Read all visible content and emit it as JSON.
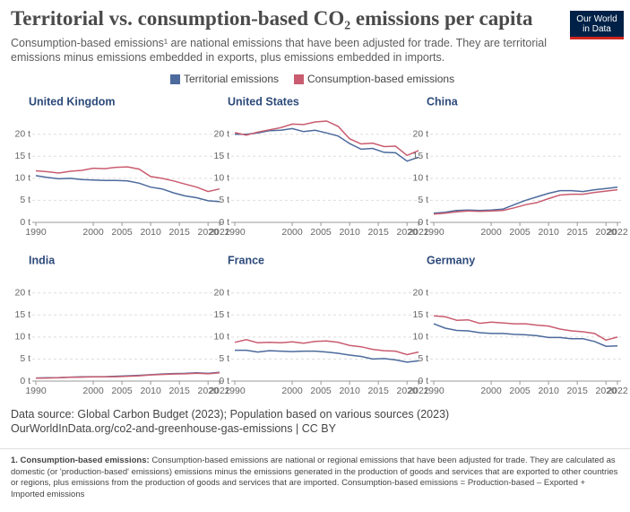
{
  "header": {
    "title": "Territorial vs. consumption-based CO₂ emissions per capita",
    "subtitle": "Consumption-based emissions¹ are national emissions that have been adjusted for trade. They are territorial emissions minus emissions embedded in exports, plus emissions embedded in imports.",
    "logo": [
      "Our World",
      "in Data"
    ]
  },
  "legend": [
    {
      "name": "Territorial emissions",
      "color": "#4c6a9c"
    },
    {
      "name": "Consumption-based emissions",
      "color": "#c95c6f"
    }
  ],
  "chart_data": [
    {
      "type": "line",
      "title": "United Kingdom",
      "x": [
        1990,
        1992,
        1994,
        1996,
        1998,
        2000,
        2002,
        2004,
        2006,
        2008,
        2010,
        2012,
        2014,
        2016,
        2018,
        2020,
        2022
      ],
      "series": [
        {
          "values": [
            10.6,
            10.2,
            9.9,
            10.0,
            9.7,
            9.6,
            9.5,
            9.5,
            9.4,
            8.9,
            8.0,
            7.6,
            6.7,
            6.0,
            5.6,
            4.9,
            4.7
          ]
        },
        {
          "values": [
            11.7,
            11.5,
            11.2,
            11.6,
            11.8,
            12.3,
            12.2,
            12.5,
            12.6,
            12.1,
            10.4,
            10.0,
            9.4,
            8.7,
            8.0,
            7.0,
            7.6
          ]
        }
      ],
      "xlim": [
        1990,
        2022
      ],
      "ylim": [
        0,
        23
      ],
      "xticks": [
        1990,
        2000,
        2005,
        2010,
        2015,
        2020,
        2022
      ],
      "yticks": [
        {
          "value": 0,
          "label": "0 t"
        },
        {
          "value": 5,
          "label": "5 t"
        },
        {
          "value": 10,
          "label": "10 t"
        },
        {
          "value": 15,
          "label": "15 t"
        },
        {
          "value": 20,
          "label": "20 t"
        }
      ]
    },
    {
      "type": "line",
      "title": "United States",
      "x": [
        1990,
        1992,
        1994,
        1996,
        1998,
        2000,
        2002,
        2004,
        2006,
        2008,
        2010,
        2012,
        2014,
        2016,
        2018,
        2020,
        2022
      ],
      "series": [
        {
          "values": [
            20.0,
            20.0,
            20.3,
            20.8,
            20.9,
            21.3,
            20.6,
            20.9,
            20.3,
            19.6,
            17.9,
            16.6,
            16.8,
            15.9,
            15.8,
            13.9,
            14.8
          ]
        },
        {
          "values": [
            20.4,
            19.8,
            20.5,
            21.0,
            21.5,
            22.3,
            22.2,
            22.8,
            23.0,
            21.8,
            19.0,
            17.8,
            18.0,
            17.2,
            17.3,
            15.2,
            16.3
          ]
        }
      ],
      "xlim": [
        1990,
        2022
      ],
      "ylim": [
        0,
        23
      ],
      "xticks": [
        1990,
        2000,
        2005,
        2010,
        2015,
        2020,
        2022
      ],
      "yticks": [
        {
          "value": 0,
          "label": "0 t"
        },
        {
          "value": 5,
          "label": "5 t"
        },
        {
          "value": 10,
          "label": "10 t"
        },
        {
          "value": 15,
          "label": "15 t"
        },
        {
          "value": 20,
          "label": "20 t"
        }
      ]
    },
    {
      "type": "line",
      "title": "China",
      "x": [
        1990,
        1992,
        1994,
        1996,
        1998,
        2000,
        2002,
        2004,
        2006,
        2008,
        2010,
        2012,
        2014,
        2016,
        2018,
        2020,
        2022
      ],
      "series": [
        {
          "values": [
            2.1,
            2.3,
            2.7,
            2.8,
            2.7,
            2.8,
            3.0,
            4.0,
            5.0,
            5.8,
            6.6,
            7.2,
            7.2,
            7.0,
            7.4,
            7.7,
            8.0
          ]
        },
        {
          "values": [
            1.9,
            2.1,
            2.4,
            2.6,
            2.5,
            2.6,
            2.7,
            3.3,
            4.0,
            4.5,
            5.4,
            6.2,
            6.4,
            6.4,
            6.8,
            7.1,
            7.4
          ]
        }
      ],
      "xlim": [
        1990,
        2022
      ],
      "ylim": [
        0,
        23
      ],
      "xticks": [
        1990,
        2000,
        2005,
        2010,
        2015,
        2020,
        2022
      ],
      "yticks": [
        {
          "value": 0,
          "label": "0 t"
        },
        {
          "value": 5,
          "label": "5 t"
        },
        {
          "value": 10,
          "label": "10 t"
        },
        {
          "value": 15,
          "label": "15 t"
        },
        {
          "value": 20,
          "label": "20 t"
        }
      ]
    },
    {
      "type": "line",
      "title": "India",
      "x": [
        1990,
        1992,
        1994,
        1996,
        1998,
        2000,
        2002,
        2004,
        2006,
        2008,
        2010,
        2012,
        2014,
        2016,
        2018,
        2020,
        2022
      ],
      "series": [
        {
          "values": [
            0.7,
            0.75,
            0.8,
            0.9,
            0.95,
            1.0,
            1.0,
            1.1,
            1.2,
            1.3,
            1.45,
            1.6,
            1.7,
            1.75,
            1.9,
            1.75,
            2.0
          ]
        },
        {
          "values": [
            0.65,
            0.7,
            0.75,
            0.85,
            0.9,
            0.95,
            0.95,
            1.0,
            1.1,
            1.2,
            1.4,
            1.5,
            1.6,
            1.65,
            1.8,
            1.65,
            1.9
          ]
        }
      ],
      "xlim": [
        1990,
        2022
      ],
      "ylim": [
        0,
        23
      ],
      "xticks": [
        1990,
        2000,
        2005,
        2010,
        2015,
        2020,
        2022
      ],
      "yticks": [
        {
          "value": 0,
          "label": "0 t"
        },
        {
          "value": 5,
          "label": "5 t"
        },
        {
          "value": 10,
          "label": "10 t"
        },
        {
          "value": 15,
          "label": "15 t"
        },
        {
          "value": 20,
          "label": "20 t"
        }
      ]
    },
    {
      "type": "line",
      "title": "France",
      "x": [
        1990,
        1992,
        1994,
        1996,
        1998,
        2000,
        2002,
        2004,
        2006,
        2008,
        2010,
        2012,
        2014,
        2016,
        2018,
        2020,
        2022
      ],
      "series": [
        {
          "values": [
            7.0,
            7.0,
            6.6,
            6.9,
            6.8,
            6.7,
            6.8,
            6.8,
            6.6,
            6.3,
            5.9,
            5.6,
            5.0,
            5.1,
            4.8,
            4.3,
            4.6
          ]
        },
        {
          "values": [
            8.8,
            9.4,
            8.7,
            8.8,
            8.7,
            8.9,
            8.6,
            9.0,
            9.1,
            8.8,
            8.1,
            7.8,
            7.2,
            6.9,
            6.8,
            6.0,
            6.6
          ]
        }
      ],
      "xlim": [
        1990,
        2022
      ],
      "ylim": [
        0,
        23
      ],
      "xticks": [
        1990,
        2000,
        2005,
        2010,
        2015,
        2020,
        2022
      ],
      "yticks": [
        {
          "value": 0,
          "label": "0 t"
        },
        {
          "value": 5,
          "label": "5 t"
        },
        {
          "value": 10,
          "label": "10 t"
        },
        {
          "value": 15,
          "label": "15 t"
        },
        {
          "value": 20,
          "label": "20 t"
        }
      ]
    },
    {
      "type": "line",
      "title": "Germany",
      "x": [
        1990,
        1992,
        1994,
        1996,
        1998,
        2000,
        2002,
        2004,
        2006,
        2008,
        2010,
        2012,
        2014,
        2016,
        2018,
        2020,
        2022
      ],
      "series": [
        {
          "values": [
            13.0,
            12.0,
            11.5,
            11.4,
            11.0,
            10.8,
            10.8,
            10.6,
            10.5,
            10.3,
            9.9,
            9.9,
            9.6,
            9.6,
            9.0,
            7.9,
            8.0
          ]
        },
        {
          "values": [
            14.8,
            14.6,
            13.8,
            13.9,
            13.1,
            13.4,
            13.2,
            13.0,
            13.0,
            12.7,
            12.5,
            11.8,
            11.4,
            11.2,
            10.8,
            9.3,
            10.0
          ]
        }
      ],
      "xlim": [
        1990,
        2022
      ],
      "ylim": [
        0,
        23
      ],
      "xticks": [
        1990,
        2000,
        2005,
        2010,
        2015,
        2020,
        2022
      ],
      "yticks": [
        {
          "value": 0,
          "label": "0 t"
        },
        {
          "value": 5,
          "label": "5 t"
        },
        {
          "value": 10,
          "label": "10 t"
        },
        {
          "value": 15,
          "label": "15 t"
        },
        {
          "value": 20,
          "label": "20 t"
        }
      ]
    }
  ],
  "source": [
    "Data source: Global Carbon Budget (2023); Population based on various sources (2023)",
    "OurWorldInData.org/co2-and-greenhouse-gas-emissions | CC BY"
  ],
  "footnote": {
    "label": "1. Consumption-based emissions:",
    "text": "Consumption-based emissions are national or regional emissions that have been adjusted for trade. They are calculated as domestic (or 'production-based' emissions) emissions minus the emissions generated in the production of goods and services that are exported to other countries or regions, plus emissions from the production of goods and services that are imported. Consumption-based emissions = Production-based – Exported + Imported emissions"
  }
}
